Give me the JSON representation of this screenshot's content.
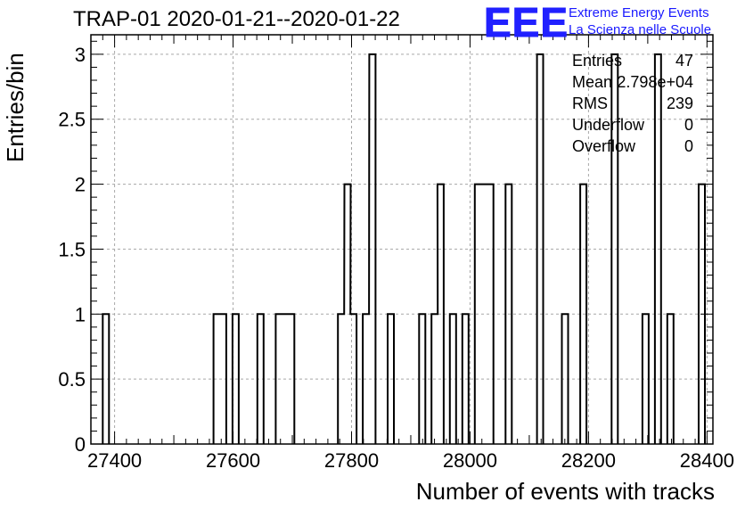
{
  "title": "TRAP-01 2020-01-21--2020-01-22",
  "logo": {
    "mark": "EEE",
    "line1": "Extreme Energy Events",
    "line2": "La Scienza nelle Scuole",
    "color": "#2020ff"
  },
  "stats": [
    {
      "name": "Entries",
      "value": "47"
    },
    {
      "name": "Mean",
      "value": "2.798e+04"
    },
    {
      "name": "RMS",
      "value": "239"
    },
    {
      "name": "Underflow",
      "value": "0"
    },
    {
      "name": "Overflow",
      "value": "0"
    }
  ],
  "chart_data": {
    "type": "histogram",
    "title": "TRAP-01 2020-01-21--2020-01-22",
    "xlabel": "Number of events with tracks",
    "ylabel": "Entries/bin",
    "xlim": [
      27360,
      28410
    ],
    "ylim": [
      0,
      3.15
    ],
    "xticks": [
      27400,
      27600,
      27800,
      28000,
      28200,
      28400
    ],
    "yticks": [
      0,
      0.5,
      1,
      1.5,
      2,
      2.5,
      3
    ],
    "ytick_labels": [
      "0",
      "0.5",
      "1",
      "1.5",
      "2",
      "2.5",
      "3"
    ],
    "grid": true,
    "line_color": "#000000",
    "bin_width": 10.5,
    "bins": [
      {
        "x": 27380,
        "y": 1
      },
      {
        "x": 27567,
        "y": 1
      },
      {
        "x": 27578,
        "y": 1
      },
      {
        "x": 27599,
        "y": 1
      },
      {
        "x": 27641,
        "y": 1
      },
      {
        "x": 27672,
        "y": 1
      },
      {
        "x": 27683,
        "y": 1
      },
      {
        "x": 27693,
        "y": 1
      },
      {
        "x": 27777,
        "y": 1
      },
      {
        "x": 27788,
        "y": 2
      },
      {
        "x": 27798,
        "y": 1
      },
      {
        "x": 27819,
        "y": 1
      },
      {
        "x": 27830,
        "y": 3
      },
      {
        "x": 27861,
        "y": 1
      },
      {
        "x": 27914,
        "y": 1
      },
      {
        "x": 27935,
        "y": 1
      },
      {
        "x": 27945,
        "y": 2
      },
      {
        "x": 27966,
        "y": 1
      },
      {
        "x": 27987,
        "y": 1
      },
      {
        "x": 28008,
        "y": 2
      },
      {
        "x": 28018,
        "y": 2
      },
      {
        "x": 28029,
        "y": 2
      },
      {
        "x": 28060,
        "y": 2
      },
      {
        "x": 28113,
        "y": 3
      },
      {
        "x": 28155,
        "y": 1
      },
      {
        "x": 28186,
        "y": 2
      },
      {
        "x": 28239,
        "y": 3
      },
      {
        "x": 28291,
        "y": 1
      },
      {
        "x": 28312,
        "y": 3
      },
      {
        "x": 28333,
        "y": 1
      },
      {
        "x": 28386,
        "y": 2
      }
    ]
  }
}
